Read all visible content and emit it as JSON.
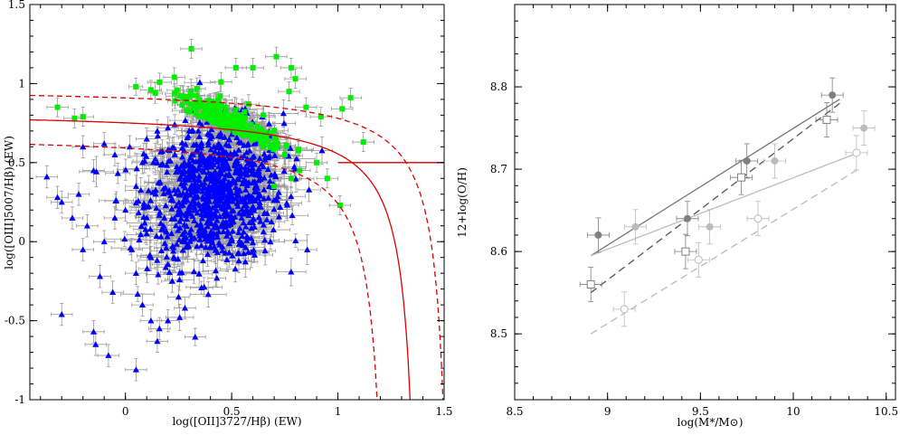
{
  "chart_data": [
    {
      "type": "scatter",
      "xlabel": "log([OII]3727/Hβ) (EW)",
      "ylabel": "log([OIII]5007/Hβ) (EW)",
      "xlim": [
        -0.45,
        1.5
      ],
      "ylim": [
        -1.0,
        1.5
      ],
      "xticks": [
        "0",
        "0.5",
        "1",
        "1.5"
      ],
      "xtick_values": [
        0,
        0.5,
        1,
        1.5
      ],
      "yticks": [
        "-1",
        "-0.5",
        "0",
        "0.5",
        "1",
        "1.5"
      ],
      "ytick_values": [
        -1,
        -0.5,
        0,
        0.5,
        1,
        1.5
      ],
      "colors": {
        "triangles": "#0000ff",
        "squares": "#00ee00",
        "errorbars": "#999999",
        "curves": "#dd0000"
      },
      "series": [
        {
          "marker": "triangle",
          "color": "#0000ff",
          "points": [
            [
              -0.37,
              0.41
            ],
            [
              -0.32,
              0.28
            ],
            [
              -0.3,
              -0.46
            ],
            [
              -0.15,
              -0.57
            ],
            [
              -0.14,
              -0.65
            ],
            [
              -0.08,
              -0.72
            ],
            [
              0.05,
              -0.81
            ],
            [
              -0.2,
              0.6
            ],
            [
              -0.1,
              0.62
            ],
            [
              -0.05,
              0.55
            ],
            [
              0.02,
              0.6
            ],
            [
              -0.15,
              0.45
            ],
            [
              -0.22,
              0.3
            ],
            [
              -0.05,
              0.15
            ],
            [
              -0.1,
              0.0
            ],
            [
              -0.2,
              -0.05
            ],
            [
              -0.12,
              -0.22
            ],
            [
              -0.06,
              -0.32
            ],
            [
              0.05,
              -0.2
            ],
            [
              0.08,
              -0.4
            ],
            [
              0.12,
              -0.5
            ],
            [
              0.16,
              -0.55
            ],
            [
              0.15,
              -0.63
            ],
            [
              0.2,
              -0.5
            ],
            [
              0.0,
              0.2
            ],
            [
              0.05,
              0.35
            ],
            [
              0.08,
              0.5
            ],
            [
              0.1,
              0.65
            ],
            [
              0.15,
              0.7
            ],
            [
              0.2,
              0.72
            ],
            [
              -0.25,
              0.15
            ],
            [
              -0.18,
              0.1
            ],
            [
              -0.3,
              0.25
            ],
            [
              0.1,
              0.05
            ],
            [
              0.12,
              -0.1
            ],
            [
              0.18,
              0.1
            ],
            [
              0.22,
              -0.25
            ],
            [
              0.25,
              -0.35
            ],
            [
              0.28,
              -0.42
            ],
            [
              0.03,
              -0.05
            ]
          ]
        },
        {
          "marker": "square",
          "color": "#00ee00",
          "points": [
            [
              -0.32,
              0.85
            ],
            [
              -0.24,
              0.78
            ],
            [
              -0.2,
              0.79
            ],
            [
              0.12,
              0.96
            ],
            [
              0.23,
              1.04
            ],
            [
              0.27,
              0.92
            ],
            [
              0.31,
              1.22
            ],
            [
              0.45,
              1.01
            ],
            [
              0.52,
              1.1
            ],
            [
              0.6,
              1.1
            ],
            [
              0.71,
              1.17
            ],
            [
              0.78,
              1.1
            ],
            [
              0.8,
              1.03
            ],
            [
              0.77,
              0.95
            ],
            [
              0.58,
              0.87
            ],
            [
              0.65,
              0.8
            ],
            [
              0.85,
              0.85
            ],
            [
              0.92,
              0.79
            ],
            [
              1.06,
              0.91
            ],
            [
              1.02,
              0.84
            ],
            [
              1.12,
              0.63
            ],
            [
              1.01,
              0.23
            ],
            [
              0.95,
              0.4
            ],
            [
              0.9,
              0.5
            ],
            [
              0.82,
              0.45
            ],
            [
              0.78,
              0.4
            ],
            [
              0.7,
              0.35
            ],
            [
              0.75,
              0.55
            ],
            [
              0.65,
              0.6
            ],
            [
              0.55,
              0.7
            ]
          ]
        }
      ],
      "curves": [
        {
          "style": "solid",
          "kind": "demarcation",
          "color": "#dd0000"
        },
        {
          "style": "dashed",
          "kind": "upper-bound",
          "color": "#dd0000"
        },
        {
          "style": "dashed",
          "kind": "lower-bound",
          "color": "#dd0000"
        },
        {
          "style": "solid",
          "kind": "horizontal",
          "y": 0.5,
          "x_from": 1.0,
          "color": "#dd0000"
        }
      ]
    },
    {
      "type": "scatter",
      "xlabel": "log(M*/M⊙)",
      "ylabel": "12+log(O/H)",
      "xlim": [
        8.5,
        10.55
      ],
      "ylim": [
        8.42,
        8.9
      ],
      "xticks": [
        "8.5",
        "9",
        "9.5",
        "10",
        "10.5"
      ],
      "xtick_values": [
        8.5,
        9,
        9.5,
        10,
        10.5
      ],
      "yticks": [
        "8.5",
        "8.6",
        "8.7",
        "8.8"
      ],
      "ytick_values": [
        8.5,
        8.6,
        8.7,
        8.8
      ],
      "series": [
        {
          "marker": "filled-circle",
          "color": "#808080",
          "x": [
            8.95,
            9.43,
            9.75,
            10.21
          ],
          "y": [
            8.62,
            8.64,
            8.71,
            8.79
          ]
        },
        {
          "marker": "filled-circle",
          "color": "#bbbbbb",
          "x": [
            9.15,
            9.55,
            9.9,
            10.38
          ],
          "y": [
            8.63,
            8.63,
            8.71,
            8.75
          ]
        },
        {
          "marker": "open-square",
          "color": "#808080",
          "x": [
            8.91,
            9.42,
            9.72,
            10.18
          ],
          "y": [
            8.56,
            8.6,
            8.69,
            8.76
          ]
        },
        {
          "marker": "open-circle",
          "color": "#bbbbbb",
          "x": [
            9.09,
            9.49,
            9.81,
            10.34
          ],
          "y": [
            8.53,
            8.59,
            8.64,
            8.72
          ]
        }
      ],
      "fit_lines": [
        {
          "style": "solid",
          "color": "#777777",
          "x": [
            8.91,
            10.25
          ],
          "y": [
            8.595,
            8.785
          ]
        },
        {
          "style": "solid",
          "color": "#bbbbbb",
          "x": [
            8.91,
            10.35
          ],
          "y": [
            8.595,
            8.72
          ]
        },
        {
          "style": "dashed",
          "color": "#555555",
          "x": [
            8.91,
            10.25
          ],
          "y": [
            8.55,
            8.78
          ]
        },
        {
          "style": "dashed",
          "color": "#bbbbbb",
          "x": [
            8.91,
            10.35
          ],
          "y": [
            8.5,
            8.7
          ]
        }
      ]
    }
  ]
}
